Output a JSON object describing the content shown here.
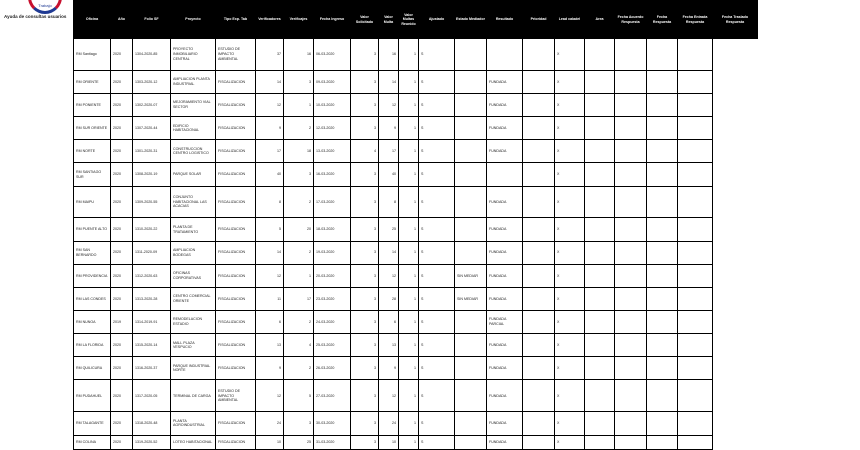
{
  "header": {
    "logo_text": "Trabajo",
    "subtitle": "Ayuda de consultas usuarios"
  },
  "table": {
    "columns": [
      "Oficina",
      "Año",
      "Folio SF",
      "Proyecto",
      "Tipo Exp. Tab",
      "Verificadores",
      "Verificajes",
      "Fecha Ingreso",
      "Valor Solicitado",
      "Valor Multa",
      "Valor Multas Reunido",
      "Ajustado",
      "Estado Mediador",
      "Resultado",
      "Prioridad",
      "Lead caladel",
      "Area",
      "Fecha Acuerdo Respuesta",
      "Fecha Respuesta",
      "Fecha Entrada Respuesta",
      "Fecha Traslado Respuesta"
    ],
    "widths": [
      37,
      22,
      38,
      45,
      40,
      28,
      30,
      37,
      28,
      20,
      20,
      36,
      32,
      36,
      32,
      30,
      30,
      32,
      31,
      35,
      45
    ],
    "rows": [
      [
        "RM Santiago",
        "2020",
        "1304-2020-85",
        "PROYECTO INMOBILIARIO CENTRAL",
        "ESTUDIO DE IMPACTO AMBIENTAL",
        "37",
        "16",
        "06-03-2020",
        "3",
        "16",
        "1",
        "S",
        null,
        null,
        null,
        "X",
        null,
        null,
        null,
        null
      ],
      [
        "RM ORIENTE",
        "2020",
        "1303-2020-12",
        "AMPLIACION PLANTA INDUSTRIAL",
        "FISCALIZACION",
        "14",
        "3",
        "09-03-2020",
        "3",
        "14",
        "1",
        "S",
        null,
        "FUNDADA",
        null,
        "X",
        null,
        null,
        null,
        null
      ],
      [
        "RM PONIENTE",
        "2020",
        "1302-2020-07",
        "MEJORAMIENTO VIAL SECTOR",
        "FISCALIZACION",
        "12",
        "1",
        "10-03-2020",
        "3",
        "12",
        "1",
        "S",
        null,
        "FUNDADA",
        null,
        "X",
        null,
        null,
        null,
        null
      ],
      [
        "RM SUR ORIENTE",
        "2020",
        "1307-2020-44",
        "EDIFICIO HABITACIONAL",
        "FISCALIZACION",
        "9",
        "2",
        "12-03-2020",
        "3",
        "9",
        "1",
        "S",
        null,
        "FUNDADA",
        null,
        "X",
        null,
        null,
        null,
        null
      ],
      [
        "RM NORTE",
        "2020",
        "1301-2020-31",
        "CONSTRUCCION CENTRO LOGISTICO",
        "FISCALIZACION",
        "17",
        "18",
        "13-03-2020",
        "4",
        "17",
        "1",
        "S",
        null,
        "FUNDADA",
        null,
        "X",
        null,
        null,
        null,
        null
      ],
      [
        "RM SANTIAGO SUR",
        "2020",
        "1308-2020-19",
        "PARQUE SOLAR",
        "FISCALIZACION",
        "40",
        "3",
        "16-03-2020",
        "3",
        "40",
        "1",
        "S",
        null,
        null,
        null,
        "X",
        null,
        null,
        null,
        null
      ],
      [
        "RM MAIPU",
        "2020",
        "1309-2020-55",
        "CONJUNTO HABITACIONAL LAS ACACIAS",
        "FISCALIZACION",
        "8",
        "2",
        "17-03-2020",
        "3",
        "8",
        "1",
        "S",
        null,
        "FUNDADA",
        null,
        "X",
        null,
        null,
        null,
        null
      ],
      [
        "RM PUENTE ALTO",
        "2020",
        "1310-2020-22",
        "PLANTA DE TRATAMIENTO",
        "FISCALIZACION",
        "5",
        "20",
        "18-03-2020",
        "3",
        "25",
        "1",
        "S",
        null,
        "FUNDADA",
        null,
        "X",
        null,
        null,
        null,
        null
      ],
      [
        "RM SAN BERNARDO",
        "2020",
        "1311-2020-09",
        "AMPLIACION BODEGAS",
        "FISCALIZACION",
        "14",
        "2",
        "19-03-2020",
        "3",
        "14",
        "1",
        "S",
        null,
        "FUNDADA",
        null,
        "X",
        null,
        null,
        null,
        null
      ],
      [
        "RM PROVIDENCIA",
        "2020",
        "1312-2020-63",
        "OFICINAS CORPORATIVAS",
        "FISCALIZACION",
        "12",
        "1",
        "20-03-2020",
        "3",
        "12",
        "1",
        "S",
        "SIN MEDIAR",
        "FUNDADA",
        null,
        "X",
        null,
        null,
        null,
        null
      ],
      [
        "RM LAS CONDES",
        "2020",
        "1313-2020-28",
        "CENTRO COMERCIAL ORIENTE",
        "FISCALIZACION",
        "11",
        "17",
        "23-03-2020",
        "3",
        "28",
        "1",
        "S",
        "SIN MEDIAR",
        "FUNDADA",
        null,
        "X",
        null,
        null,
        null,
        null
      ],
      [
        "RM NUNOA",
        "2019",
        "1314-2019-91",
        "REMODELACION ESTADIO",
        "FISCALIZACION",
        "6",
        "2",
        "24-03-2020",
        "3",
        "6",
        "1",
        "S",
        null,
        "FUNDADA PARCIAL",
        null,
        "X",
        null,
        null,
        null,
        null
      ],
      [
        "RM LA FLORIDA",
        "2020",
        "1315-2020-14",
        "MALL PLAZA VESPUCIO",
        "FISCALIZACION",
        "13",
        "4",
        "25-03-2020",
        "3",
        "13",
        "1",
        "S",
        null,
        "FUNDADA",
        null,
        "X",
        null,
        null,
        null,
        null
      ],
      [
        "RM QUILICURA",
        "2020",
        "1316-2020-37",
        "PARQUE INDUSTRIAL NORTE",
        "FISCALIZACION",
        "9",
        "2",
        "26-03-2020",
        "3",
        "9",
        "1",
        "S",
        null,
        "FUNDADA",
        null,
        "X",
        null,
        null,
        null,
        null
      ],
      [
        "RM PUDAHUEL",
        "2020",
        "1317-2020-05",
        "TERMINAL DE CARGA",
        "ESTUDIO DE IMPACTO AMBIENTAL",
        "12",
        "5",
        "27-03-2020",
        "3",
        "12",
        "1",
        "S",
        null,
        "FUNDADA",
        null,
        "X",
        null,
        null,
        null,
        null
      ],
      [
        "RM TALAGANTE",
        "2020",
        "1318-2020-48",
        "PLANTA AGROINDUSTRIAL",
        "FISCALIZACION",
        "24",
        "3",
        "30-03-2020",
        "3",
        "24",
        "1",
        "S",
        null,
        "FUNDADA",
        null,
        "X",
        null,
        null,
        null,
        null
      ],
      [
        "RM COLINA",
        "2020",
        "1319-2020-52",
        "LOTEO HABITACIONAL",
        "FISCALIZACION",
        "10",
        "25",
        "31-03-2020",
        "3",
        "10",
        "1",
        "S",
        null,
        "FUNDADA",
        null,
        "X",
        null,
        null,
        null,
        null
      ]
    ]
  }
}
